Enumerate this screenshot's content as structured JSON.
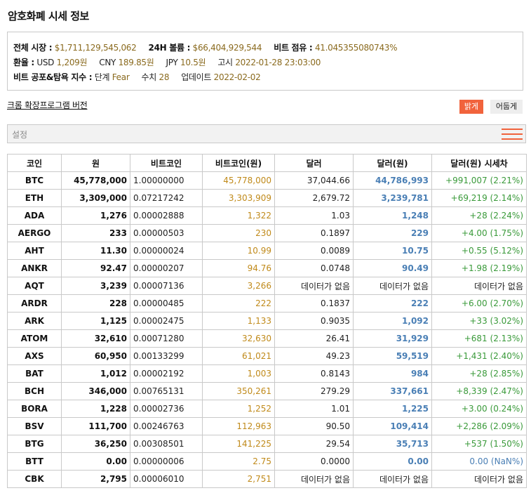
{
  "page": {
    "title": "암호화폐 시세 정보"
  },
  "summary": {
    "market_cap_label": "전체 시장 :",
    "market_cap_value": "$1,711,129,545,062",
    "volume_label": "24H 볼륨 :",
    "volume_value": "$66,404,929,544",
    "dominance_label": "비트 점유 :",
    "dominance_value": "41.045355080743%",
    "exchange_label": "환율 :",
    "usd_label": "USD",
    "usd_value": "1,209원",
    "cny_label": "CNY",
    "cny_value": "189.85원",
    "jpy_label": "JPY",
    "jpy_value": "10.5원",
    "notice_label": "고시",
    "notice_value": "2022-01-28 23:03:00",
    "fear_label": "비트 공포&탐욕 지수 :",
    "stage_label": "단계",
    "stage_value": "Fear",
    "score_label": "수치",
    "score_value": "28",
    "update_label": "업데이트",
    "update_value": "2022-02-02"
  },
  "controls": {
    "extension_link": "크롬 확장프로그램 버전",
    "theme_bright": "밝게",
    "theme_dark": "어둡게",
    "settings_label": "설정",
    "accent_color": "#f1633c"
  },
  "table": {
    "headers": [
      "코인",
      "원",
      "비트코인",
      "비트코인(원)",
      "달러",
      "달러(원)",
      "달러(원) 시세차"
    ],
    "rows": [
      {
        "coin": "BTC",
        "krw": "45,778,000",
        "btc": "1.00000000",
        "btc_krw": "45,778,000",
        "usd": "37,044.66",
        "usd_krw": "44,786,993",
        "diff": "+991,007 (2.21%)"
      },
      {
        "coin": "ETH",
        "krw": "3,309,000",
        "btc": "0.07217242",
        "btc_krw": "3,303,909",
        "usd": "2,679.72",
        "usd_krw": "3,239,781",
        "diff": "+69,219 (2.14%)"
      },
      {
        "coin": "ADA",
        "krw": "1,276",
        "btc": "0.00002888",
        "btc_krw": "1,322",
        "usd": "1.03",
        "usd_krw": "1,248",
        "diff": "+28 (2.24%)"
      },
      {
        "coin": "AERGO",
        "krw": "233",
        "btc": "0.00000503",
        "btc_krw": "230",
        "usd": "0.1897",
        "usd_krw": "229",
        "diff": "+4.00 (1.75%)"
      },
      {
        "coin": "AHT",
        "krw": "11.30",
        "btc": "0.00000024",
        "btc_krw": "10.99",
        "usd": "0.0089",
        "usd_krw": "10.75",
        "diff": "+0.55 (5.12%)"
      },
      {
        "coin": "ANKR",
        "krw": "92.47",
        "btc": "0.00000207",
        "btc_krw": "94.76",
        "usd": "0.0748",
        "usd_krw": "90.49",
        "diff": "+1.98 (2.19%)"
      },
      {
        "coin": "AQT",
        "krw": "3,239",
        "btc": "0.00007136",
        "btc_krw": "3,266",
        "usd": "데이터가 없음",
        "usd_krw": "데이터가 없음",
        "diff": "데이터가 없음",
        "na": true
      },
      {
        "coin": "ARDR",
        "krw": "228",
        "btc": "0.00000485",
        "btc_krw": "222",
        "usd": "0.1837",
        "usd_krw": "222",
        "diff": "+6.00 (2.70%)"
      },
      {
        "coin": "ARK",
        "krw": "1,125",
        "btc": "0.00002475",
        "btc_krw": "1,133",
        "usd": "0.9035",
        "usd_krw": "1,092",
        "diff": "+33 (3.02%)"
      },
      {
        "coin": "ATOM",
        "krw": "32,610",
        "btc": "0.00071280",
        "btc_krw": "32,630",
        "usd": "26.41",
        "usd_krw": "31,929",
        "diff": "+681 (2.13%)"
      },
      {
        "coin": "AXS",
        "krw": "60,950",
        "btc": "0.00133299",
        "btc_krw": "61,021",
        "usd": "49.23",
        "usd_krw": "59,519",
        "diff": "+1,431 (2.40%)"
      },
      {
        "coin": "BAT",
        "krw": "1,012",
        "btc": "0.00002192",
        "btc_krw": "1,003",
        "usd": "0.8143",
        "usd_krw": "984",
        "diff": "+28 (2.85%)"
      },
      {
        "coin": "BCH",
        "krw": "346,000",
        "btc": "0.00765131",
        "btc_krw": "350,261",
        "usd": "279.29",
        "usd_krw": "337,661",
        "diff": "+8,339 (2.47%)"
      },
      {
        "coin": "BORA",
        "krw": "1,228",
        "btc": "0.00002736",
        "btc_krw": "1,252",
        "usd": "1.01",
        "usd_krw": "1,225",
        "diff": "+3.00 (0.24%)"
      },
      {
        "coin": "BSV",
        "krw": "111,700",
        "btc": "0.00246763",
        "btc_krw": "112,963",
        "usd": "90.50",
        "usd_krw": "109,414",
        "diff": "+2,286 (2.09%)"
      },
      {
        "coin": "BTG",
        "krw": "36,250",
        "btc": "0.00308501",
        "btc_krw": "141,225",
        "usd": "29.54",
        "usd_krw": "35,713",
        "diff": "+537 (1.50%)"
      },
      {
        "coin": "BTT",
        "krw": "0.00",
        "btc": "0.00000006",
        "btc_krw": "2.75",
        "usd": "0.0000",
        "usd_krw": "0.00",
        "diff": "0.00 (NaN%)",
        "zero": true
      },
      {
        "coin": "CBK",
        "krw": "2,795",
        "btc": "0.00006010",
        "btc_krw": "2,751",
        "usd": "데이터가 없음",
        "usd_krw": "데이터가 없음",
        "diff": "데이터가 없음",
        "na": true
      }
    ]
  }
}
